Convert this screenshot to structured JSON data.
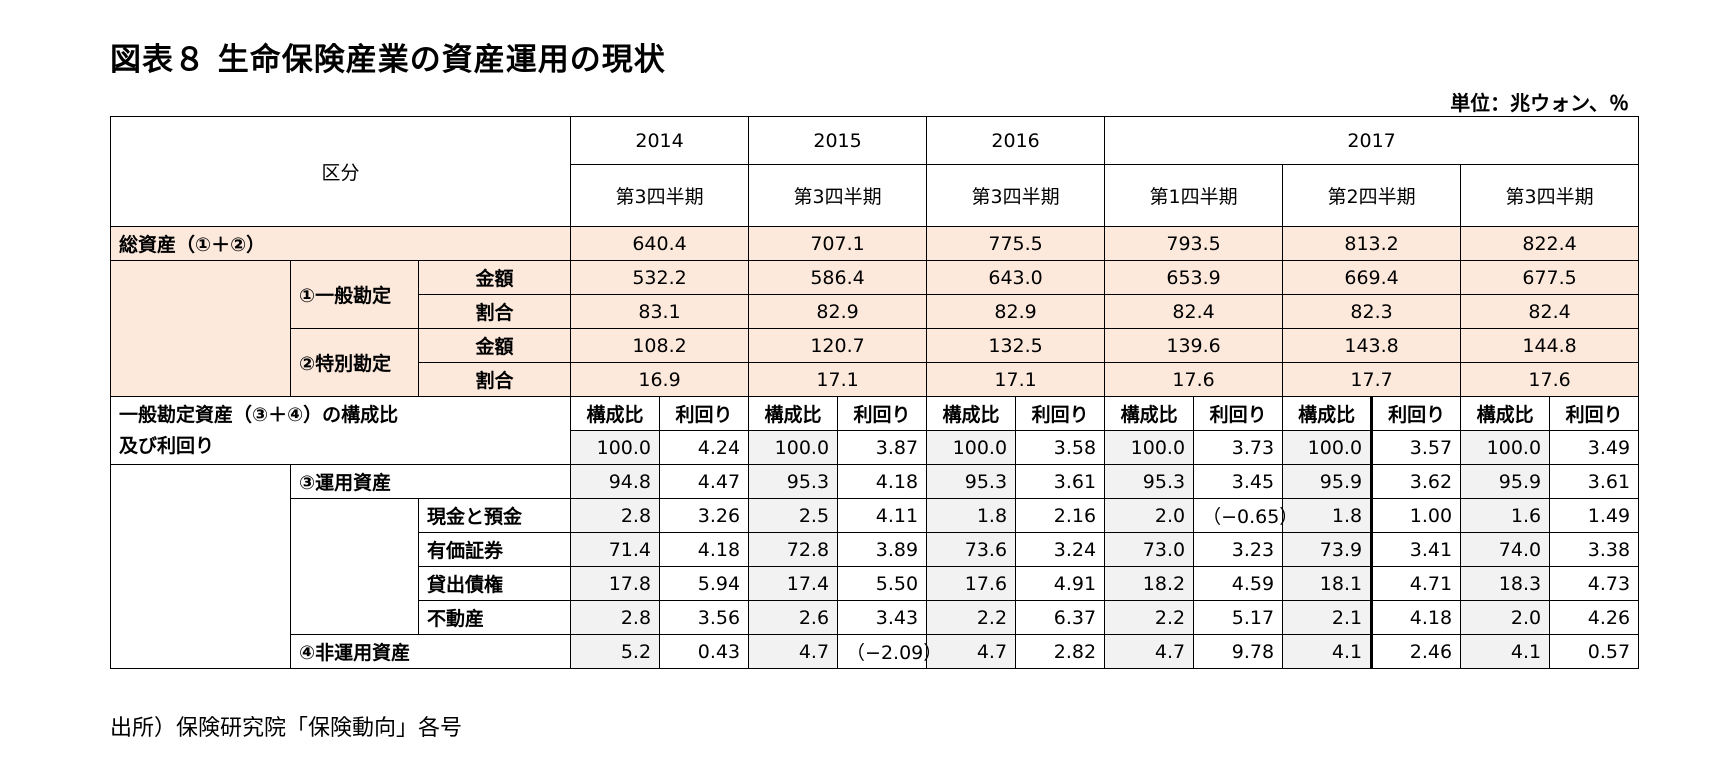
{
  "title": "図表８ 生命保険産業の資産運用の現状",
  "unit": "単位：兆ウォン、％",
  "source": "出所）保険研究院「保険動向」各号",
  "header": {
    "category": "区分",
    "years": [
      "2014",
      "2015",
      "2016",
      "2017"
    ],
    "quarters": [
      "第3四半期",
      "第3四半期",
      "第3四半期",
      "第1四半期",
      "第2四半期",
      "第3四半期"
    ]
  },
  "total": {
    "label": "総資産（①＋②）",
    "values": [
      "640.4",
      "707.1",
      "775.5",
      "793.5",
      "813.2",
      "822.4"
    ]
  },
  "general": {
    "label": "①一般勘定",
    "amount_label": "金額",
    "amount": [
      "532.2",
      "586.4",
      "643.0",
      "653.9",
      "669.4",
      "677.5"
    ],
    "ratio_label": "割合",
    "ratio": [
      "83.1",
      "82.9",
      "82.9",
      "82.4",
      "82.3",
      "82.4"
    ]
  },
  "special": {
    "label": "②特別勘定",
    "amount_label": "金額",
    "amount": [
      "108.2",
      "120.7",
      "132.5",
      "139.6",
      "143.8",
      "144.8"
    ],
    "ratio_label": "割合",
    "ratio": [
      "16.9",
      "17.1",
      "17.1",
      "17.6",
      "17.7",
      "17.6"
    ]
  },
  "composition": {
    "label_line1": "一般勘定資産（③＋④）の構成比",
    "label_line2": "及び利回り",
    "col_share": "構成比",
    "col_yield": "利回り",
    "total_row": [
      "100.0",
      "4.24",
      "100.0",
      "3.87",
      "100.0",
      "3.58",
      "100.0",
      "3.73",
      "100.0",
      "3.57",
      "100.0",
      "3.49"
    ]
  },
  "operating": {
    "label": "③運用資産",
    "values": [
      "94.8",
      "4.47",
      "95.3",
      "4.18",
      "95.3",
      "3.61",
      "95.3",
      "3.45",
      "95.9",
      "3.62",
      "95.9",
      "3.61"
    ]
  },
  "sub_rows": [
    {
      "label": "現金と預金",
      "values": [
        "2.8",
        "3.26",
        "2.5",
        "4.11",
        "1.8",
        "2.16",
        "2.0",
        "（−0.65）",
        "1.8",
        "1.00",
        "1.6",
        "1.49"
      ]
    },
    {
      "label": "有価証券",
      "values": [
        "71.4",
        "4.18",
        "72.8",
        "3.89",
        "73.6",
        "3.24",
        "73.0",
        "3.23",
        "73.9",
        "3.41",
        "74.0",
        "3.38"
      ]
    },
    {
      "label": "貸出債権",
      "values": [
        "17.8",
        "5.94",
        "17.4",
        "5.50",
        "17.6",
        "4.91",
        "18.2",
        "4.59",
        "18.1",
        "4.71",
        "18.3",
        "4.73"
      ]
    },
    {
      "label": "不動産",
      "values": [
        "2.8",
        "3.56",
        "2.6",
        "3.43",
        "2.2",
        "6.37",
        "2.2",
        "5.17",
        "2.1",
        "4.18",
        "2.0",
        "4.26"
      ]
    }
  ],
  "non_operating": {
    "label": "④非運用資産",
    "values": [
      "5.2",
      "0.43",
      "4.7",
      "（−2.09）",
      "4.7",
      "2.82",
      "4.7",
      "9.78",
      "4.1",
      "2.46",
      "4.1",
      "0.57"
    ]
  }
}
